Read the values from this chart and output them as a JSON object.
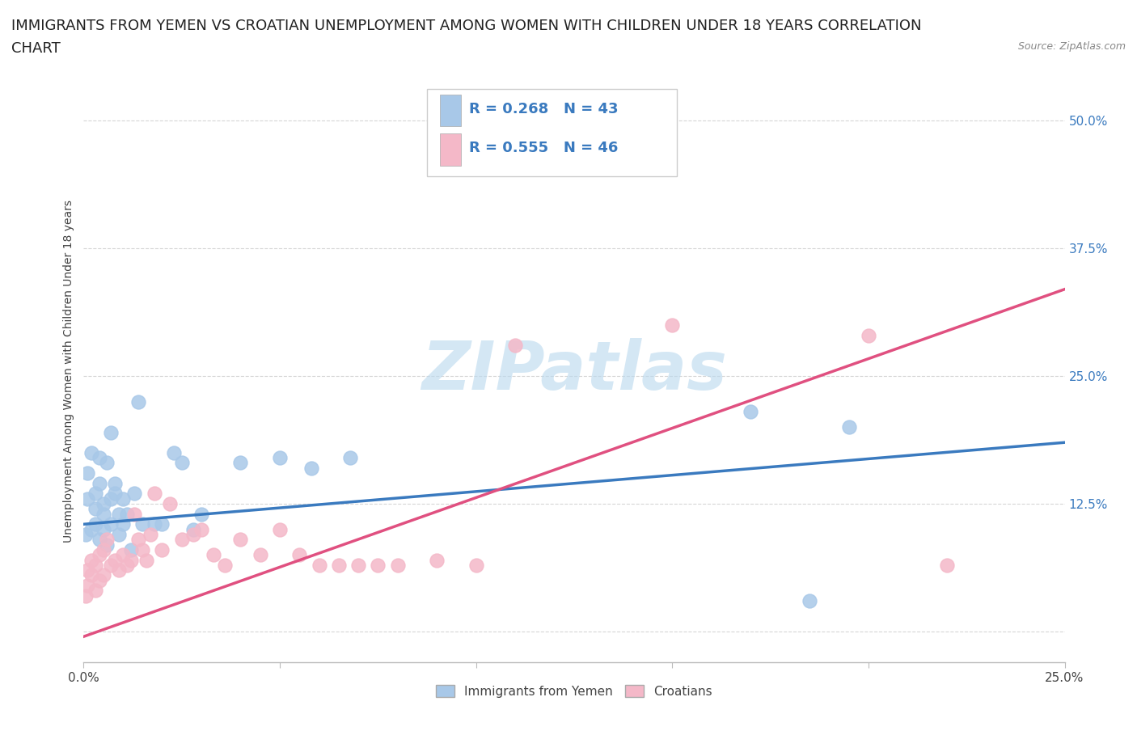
{
  "title_line1": "IMMIGRANTS FROM YEMEN VS CROATIAN UNEMPLOYMENT AMONG WOMEN WITH CHILDREN UNDER 18 YEARS CORRELATION",
  "title_line2": "CHART",
  "source": "Source: ZipAtlas.com",
  "ylabel": "Unemployment Among Women with Children Under 18 years",
  "watermark": "ZIPatlas",
  "blue_color": "#a8c8e8",
  "pink_color": "#f4b8c8",
  "blue_line_color": "#3a7abf",
  "pink_line_color": "#e05080",
  "legend_text_color": "#3a7abf",
  "ytick_color": "#3a7abf",
  "xmin": 0.0,
  "xmax": 0.25,
  "ymin": -0.03,
  "ymax": 0.54,
  "yticks": [
    0.0,
    0.125,
    0.25,
    0.375,
    0.5
  ],
  "ytick_labels": [
    "",
    "12.5%",
    "25.0%",
    "37.5%",
    "50.0%"
  ],
  "xticks": [
    0.0,
    0.05,
    0.1,
    0.15,
    0.2,
    0.25
  ],
  "xtick_labels": [
    "0.0%",
    "",
    "",
    "",
    "",
    "25.0%"
  ],
  "blue_x": [
    0.0005,
    0.001,
    0.001,
    0.002,
    0.002,
    0.003,
    0.003,
    0.003,
    0.004,
    0.004,
    0.004,
    0.005,
    0.005,
    0.005,
    0.006,
    0.006,
    0.007,
    0.007,
    0.007,
    0.008,
    0.008,
    0.009,
    0.009,
    0.01,
    0.01,
    0.011,
    0.012,
    0.013,
    0.014,
    0.015,
    0.018,
    0.02,
    0.023,
    0.025,
    0.028,
    0.03,
    0.04,
    0.05,
    0.058,
    0.068,
    0.17,
    0.185,
    0.195
  ],
  "blue_y": [
    0.095,
    0.13,
    0.155,
    0.1,
    0.175,
    0.105,
    0.12,
    0.135,
    0.09,
    0.145,
    0.17,
    0.1,
    0.115,
    0.125,
    0.085,
    0.165,
    0.195,
    0.105,
    0.13,
    0.135,
    0.145,
    0.095,
    0.115,
    0.105,
    0.13,
    0.115,
    0.08,
    0.135,
    0.225,
    0.105,
    0.105,
    0.105,
    0.175,
    0.165,
    0.1,
    0.115,
    0.165,
    0.17,
    0.16,
    0.17,
    0.215,
    0.03,
    0.2
  ],
  "pink_x": [
    0.0005,
    0.001,
    0.001,
    0.002,
    0.002,
    0.003,
    0.003,
    0.004,
    0.004,
    0.005,
    0.005,
    0.006,
    0.007,
    0.008,
    0.009,
    0.01,
    0.011,
    0.012,
    0.013,
    0.014,
    0.015,
    0.016,
    0.017,
    0.018,
    0.02,
    0.022,
    0.025,
    0.028,
    0.03,
    0.033,
    0.036,
    0.04,
    0.045,
    0.05,
    0.055,
    0.06,
    0.065,
    0.07,
    0.075,
    0.08,
    0.09,
    0.1,
    0.11,
    0.15,
    0.2,
    0.22
  ],
  "pink_y": [
    0.035,
    0.045,
    0.06,
    0.055,
    0.07,
    0.04,
    0.065,
    0.05,
    0.075,
    0.055,
    0.08,
    0.09,
    0.065,
    0.07,
    0.06,
    0.075,
    0.065,
    0.07,
    0.115,
    0.09,
    0.08,
    0.07,
    0.095,
    0.135,
    0.08,
    0.125,
    0.09,
    0.095,
    0.1,
    0.075,
    0.065,
    0.09,
    0.075,
    0.1,
    0.075,
    0.065,
    0.065,
    0.065,
    0.065,
    0.065,
    0.07,
    0.065,
    0.28,
    0.3,
    0.29,
    0.065
  ],
  "blue_trend_x": [
    0.0,
    0.25
  ],
  "blue_trend_y": [
    0.105,
    0.185
  ],
  "pink_trend_x": [
    0.0,
    0.25
  ],
  "pink_trend_y": [
    -0.005,
    0.335
  ],
  "background_color": "#ffffff",
  "grid_color": "#cccccc",
  "title_fontsize": 13,
  "axis_label_fontsize": 10,
  "tick_fontsize": 11,
  "legend_fontsize": 13,
  "watermark_fontsize": 60,
  "source_fontsize": 9
}
